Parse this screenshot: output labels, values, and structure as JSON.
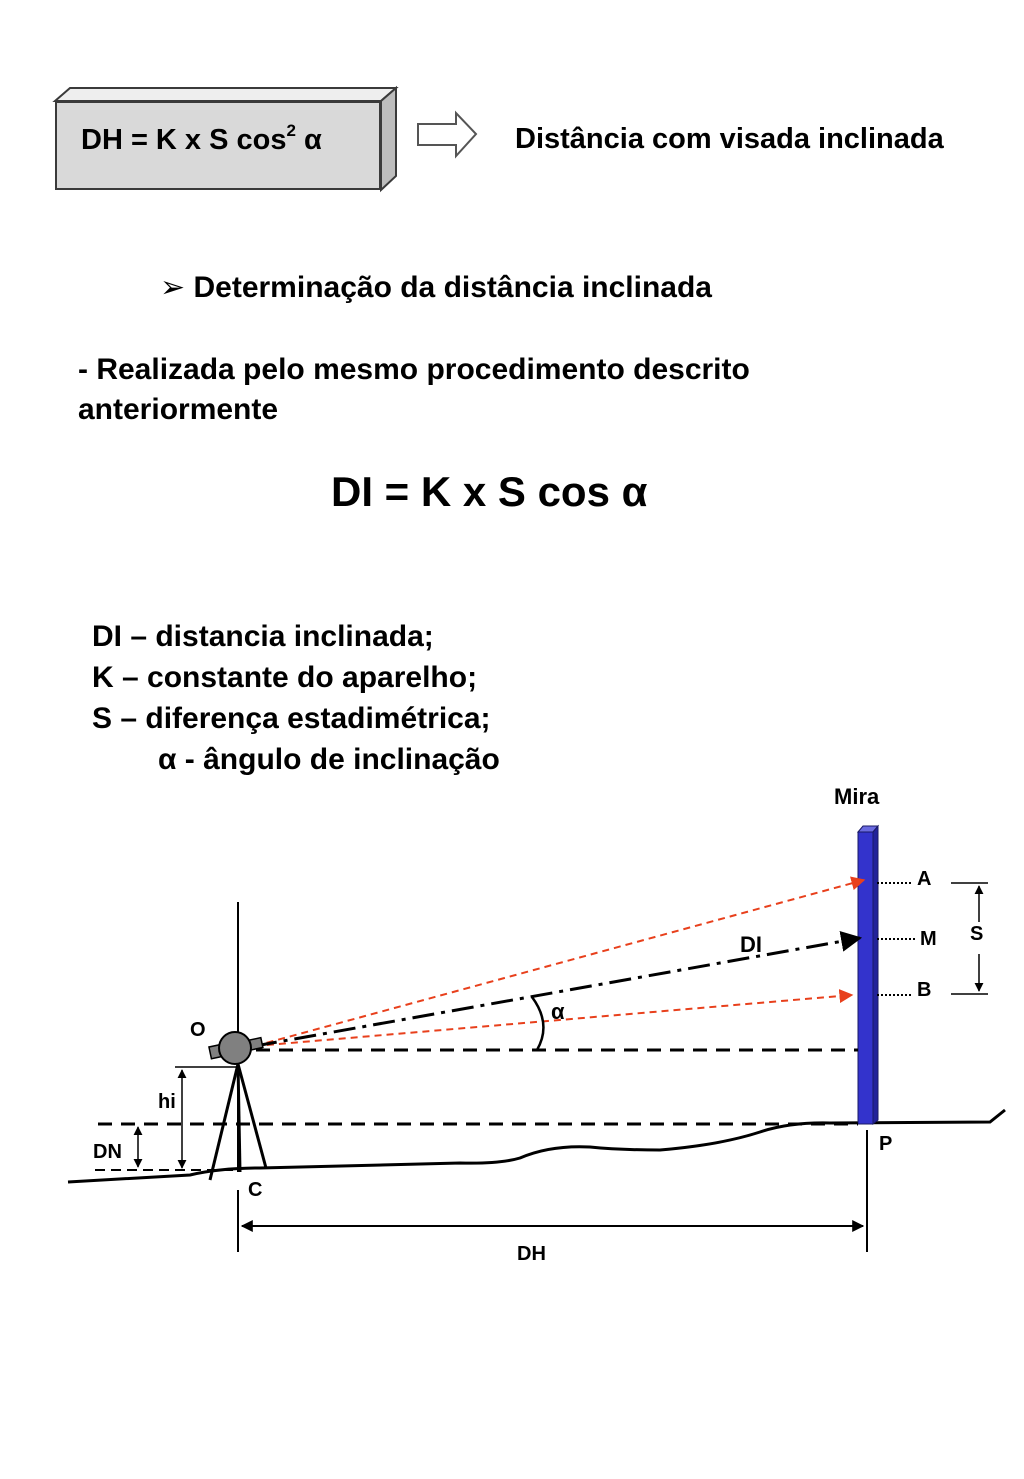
{
  "formula_box": {
    "text": "DH = K x S cos",
    "exponent": "2",
    "symbol": "α"
  },
  "arrow_icon": "right-outline-arrow",
  "caption": "Distância com visada inclinada",
  "heading": {
    "bullet_icon": "arrowhead-bullet",
    "text": "Determinação da distância inclinada"
  },
  "paragraph": {
    "line1": "- Realizada pelo mesmo procedimento descrito",
    "line2": "anteriormente"
  },
  "formula_di": "DI = K x S cos α",
  "legend": {
    "di": "DI – distancia inclinada;",
    "k": "K – constante do aparelho;",
    "s": "S – diferença estadimétrica;",
    "alpha": "α - ângulo de inclinação"
  },
  "diagram": {
    "label_mira": "Mira",
    "label_a": "A",
    "label_m": "M",
    "label_b": "B",
    "label_s": "S",
    "label_di": "DI",
    "label_alpha": "α",
    "label_o": "O",
    "label_hi": "hi",
    "label_dn": "DN",
    "label_c": "C",
    "label_p": "P",
    "label_dh": "DH",
    "colors": {
      "mira": "#3333cc",
      "sight_lines": "#e8401c",
      "lines": "#000000",
      "instrument": "#808080"
    }
  }
}
